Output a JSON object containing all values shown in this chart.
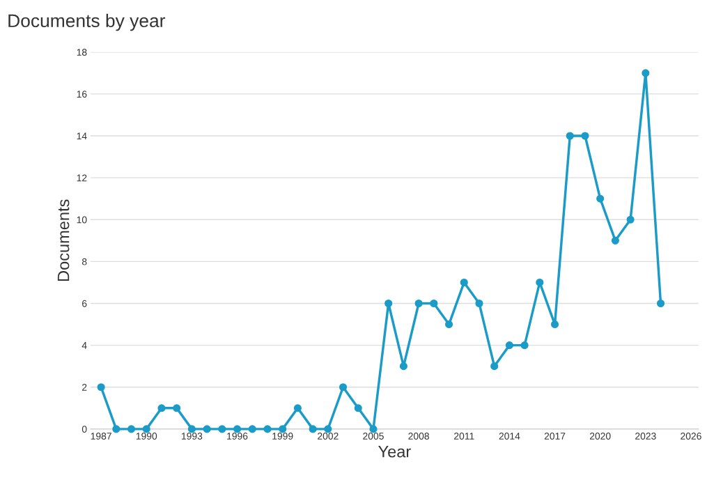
{
  "chart_data": {
    "type": "line",
    "title": "Documents by year",
    "xlabel": "Year",
    "ylabel": "Documents",
    "x": [
      1987,
      1988,
      1989,
      1990,
      1991,
      1992,
      1993,
      1994,
      1995,
      1996,
      1997,
      1998,
      1999,
      2000,
      2001,
      2002,
      2003,
      2004,
      2005,
      2006,
      2007,
      2008,
      2009,
      2010,
      2011,
      2012,
      2013,
      2014,
      2015,
      2016,
      2017,
      2018,
      2019,
      2020,
      2021,
      2022,
      2023,
      2024
    ],
    "series": [
      {
        "color": "#1b9bc7",
        "values": [
          2,
          0,
          0,
          0,
          1,
          1,
          0,
          0,
          0,
          0,
          0,
          0,
          0,
          1,
          0,
          0,
          2,
          1,
          0,
          6,
          3,
          6,
          6,
          5,
          7,
          6,
          3,
          4,
          4,
          7,
          5,
          14,
          14,
          11,
          9,
          10,
          17,
          6
        ]
      }
    ],
    "xlim": [
      1986.3,
      2026.5
    ],
    "xticks": [
      1987,
      1990,
      1993,
      1996,
      1999,
      2002,
      2005,
      2008,
      2011,
      2014,
      2017,
      2020,
      2023,
      2026
    ],
    "ylim": [
      0,
      18
    ],
    "yticks": [
      0,
      2,
      4,
      6,
      8,
      10,
      12,
      14,
      16,
      18
    ],
    "grid": "y",
    "marker": "circle",
    "line_style": "solid",
    "legend": false
  }
}
